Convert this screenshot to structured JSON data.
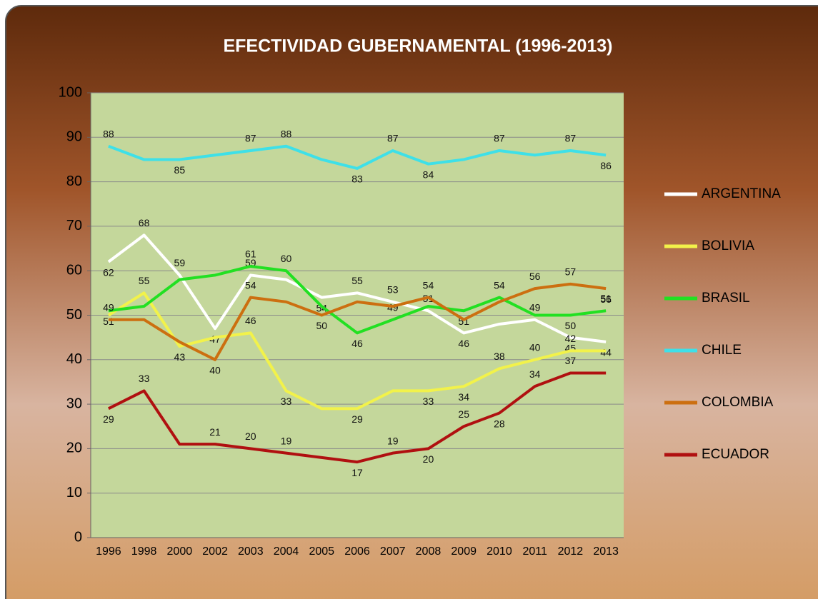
{
  "chart_data": {
    "type": "line",
    "title": "EFECTIVIDAD GUBERNAMENTAL  (1996-2013)",
    "categories": [
      "1996",
      "1998",
      "2000",
      "2002",
      "2003",
      "2004",
      "2005",
      "2006",
      "2007",
      "2008",
      "2009",
      "2010",
      "2011",
      "2012",
      "2013"
    ],
    "ylim": [
      0,
      100
    ],
    "yticks": [
      0,
      10,
      20,
      30,
      40,
      50,
      60,
      70,
      80,
      90,
      100
    ],
    "grid": true,
    "legend": "right",
    "series": [
      {
        "name": "ARGENTINA",
        "color": "#ffffff",
        "values": [
          62,
          68,
          59,
          47,
          59,
          58,
          54,
          55,
          53,
          51,
          46,
          48,
          49,
          45,
          44
        ],
        "value_labels": [
          "62",
          "68",
          "59",
          "47",
          "59",
          null,
          "54",
          "55",
          "53",
          "51",
          "46",
          null,
          "49",
          "45",
          "44"
        ]
      },
      {
        "name": "BOLIVIA",
        "color": "#f2f24a",
        "values": [
          50,
          55,
          43,
          45,
          46,
          33,
          29,
          29,
          33,
          33,
          34,
          38,
          40,
          42,
          42
        ],
        "value_labels": [
          null,
          "55",
          "43",
          null,
          "46",
          "33",
          null,
          "29",
          null,
          "33",
          "34",
          "38",
          "40",
          "42",
          null
        ]
      },
      {
        "name": "BRASIL",
        "color": "#22e022",
        "values": [
          51,
          52,
          58,
          59,
          61,
          60,
          52,
          46,
          49,
          52,
          51,
          54,
          50,
          50,
          51
        ],
        "value_labels": [
          "51",
          null,
          null,
          null,
          "61",
          "60",
          null,
          "46",
          "49",
          null,
          "51",
          "54",
          null,
          "50",
          "51"
        ]
      },
      {
        "name": "CHILE",
        "color": "#3ee0e8",
        "values": [
          88,
          85,
          85,
          86,
          87,
          88,
          85,
          83,
          87,
          84,
          85,
          87,
          86,
          87,
          86
        ],
        "value_labels": [
          "88",
          null,
          "85",
          null,
          "87",
          "88",
          null,
          "83",
          "87",
          "84",
          null,
          "87",
          null,
          "87",
          "86"
        ]
      },
      {
        "name": "COLOMBIA",
        "color": "#cc6f10",
        "values": [
          49,
          49,
          44,
          40,
          54,
          53,
          50,
          53,
          52,
          54,
          49,
          53,
          56,
          57,
          56
        ],
        "value_labels": [
          "49",
          null,
          null,
          "40",
          "54",
          null,
          "50",
          null,
          null,
          "54",
          null,
          null,
          "56",
          "57",
          "56"
        ]
      },
      {
        "name": "ECUADOR",
        "color": "#b01010",
        "values": [
          29,
          33,
          21,
          21,
          20,
          19,
          18,
          17,
          19,
          20,
          25,
          28,
          34,
          37,
          37
        ],
        "value_labels": [
          "29",
          "33",
          null,
          "21",
          "20",
          "19",
          null,
          "17",
          "19",
          "20",
          "25",
          "28",
          "34",
          "37",
          null
        ]
      }
    ]
  }
}
